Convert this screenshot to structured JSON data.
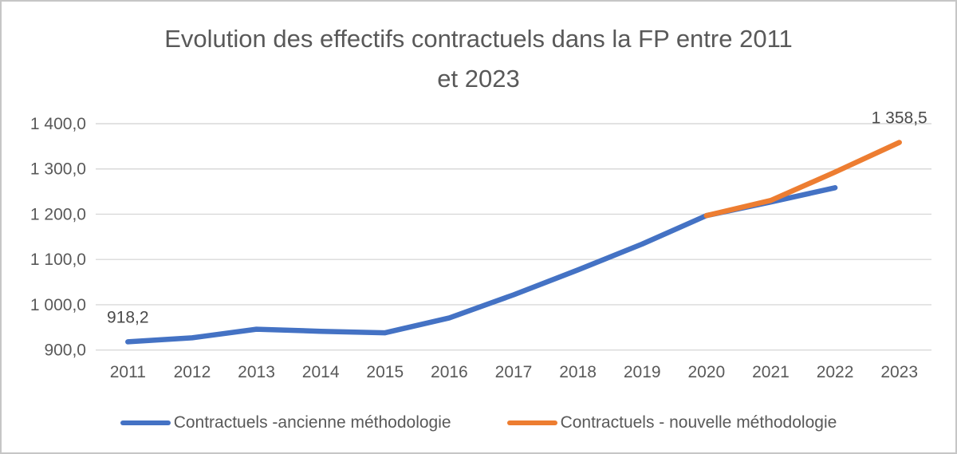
{
  "header": {
    "title_line1": "Evolution des effectifs contractuels dans la FP entre 2011",
    "title_line2": "et 2023"
  },
  "chart_data": {
    "type": "line",
    "title": "Evolution des effectifs contractuels dans la FP entre 2011 et 2023",
    "categories": [
      "2011",
      "2012",
      "2013",
      "2014",
      "2015",
      "2016",
      "2017",
      "2018",
      "2019",
      "2020",
      "2021",
      "2022",
      "2023"
    ],
    "series": [
      {
        "name": "Contractuels -ancienne méthodologie",
        "color": "#4472C4",
        "values": [
          918.2,
          927.0,
          946.0,
          941.5,
          938.0,
          971.0,
          1022.0,
          1077.0,
          1134.0,
          1197.0,
          1227.0,
          1258.5,
          null
        ]
      },
      {
        "name": "Contractuels - nouvelle méthodologie",
        "color": "#ED7D31",
        "values": [
          null,
          null,
          null,
          null,
          null,
          null,
          null,
          null,
          null,
          1197.0,
          1230.5,
          1293.0,
          1358.5
        ]
      }
    ],
    "ylim": [
      900,
      1400
    ],
    "ytick_step": 100,
    "ytick_labels": [
      "900,0",
      "1 000,0",
      "1 100,0",
      "1 200,0",
      "1 300,0",
      "1 400,0"
    ],
    "grid": true,
    "legend_position": "bottom",
    "data_labels": [
      {
        "series": 0,
        "point": 0,
        "text": "918,2"
      },
      {
        "series": 1,
        "point": 12,
        "text": "1 358,5"
      }
    ],
    "axis_text_color": "#595959",
    "data_label_color": "#4a4a4a",
    "gridline_color": "#D9D9D9",
    "line_width": 6.5
  }
}
